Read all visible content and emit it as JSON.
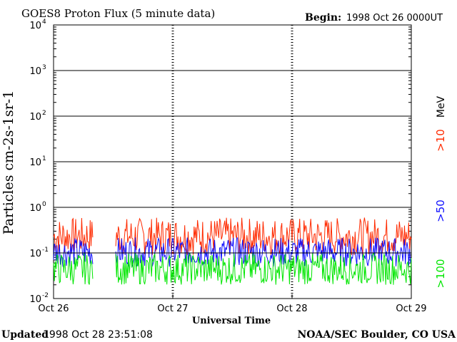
{
  "chart_data": {
    "type": "line",
    "title": "GOES8 Proton Flux (5 minute data)",
    "begin_label": "Begin:",
    "begin_value": "1998 Oct 26 0000UT",
    "ylabel": "Particles cm-2s-1sr-1",
    "xlabel": "Universal Time",
    "y_scale": "log",
    "ylim": [
      0.01,
      10000
    ],
    "y_tick_bases": [
      "10",
      "10",
      "10",
      "10",
      "10",
      "10",
      "10"
    ],
    "y_tick_exponents": [
      "4",
      "3",
      "2",
      "1",
      "0",
      "-1",
      "-2"
    ],
    "x_tick_labels": [
      "Oct 26",
      "Oct 27",
      "Oct 28",
      "Oct 29"
    ],
    "grid": true,
    "reference_line_y": 0.1,
    "units_label": "MeV",
    "data_gap_days": [
      [
        0.33,
        0.52
      ]
    ],
    "series": [
      {
        "name": ">10",
        "color": "#ff2a00",
        "baseline": 0.2,
        "spread": [
          0.09,
          0.6
        ]
      },
      {
        "name": ">50",
        "color": "#1010ff",
        "baseline": 0.1,
        "spread": [
          0.05,
          0.22
        ]
      },
      {
        "name": ">100",
        "color": "#00e600",
        "baseline": 0.05,
        "spread": [
          0.02,
          0.1
        ]
      }
    ],
    "footer_left_label": "Updated",
    "footer_left_value": "1998 Oct 28 23:51:08",
    "footer_right": "NOAA/SEC Boulder, CO USA"
  }
}
